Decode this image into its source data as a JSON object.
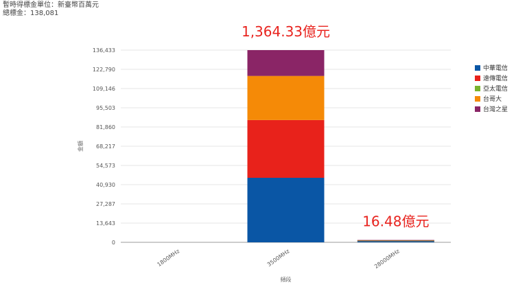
{
  "header": {
    "line1": "暫時得標金單位：新臺幣百萬元",
    "line2": "總標金：138,081"
  },
  "annotations": [
    {
      "text": "1,364.33億元",
      "category": "3500MHz"
    },
    {
      "text": "16.48億元",
      "category": "28000MHz"
    }
  ],
  "chart_data": {
    "type": "bar",
    "stacked": true,
    "categories": [
      "1800MHz",
      "3500MHz",
      "28000MHz"
    ],
    "series": [
      {
        "name": "中華電信",
        "color": "#0a56a5",
        "values": [
          0,
          45800,
          900
        ]
      },
      {
        "name": "遠傳電信",
        "color": "#e8221b",
        "values": [
          0,
          41000,
          300
        ]
      },
      {
        "name": "亞太電信",
        "color": "#7ab32e",
        "values": [
          0,
          0,
          50
        ]
      },
      {
        "name": "台哥大",
        "color": "#f58a07",
        "values": [
          0,
          31300,
          300
        ]
      },
      {
        "name": "台灣之星",
        "color": "#8a2566",
        "values": [
          0,
          18333,
          98
        ]
      }
    ],
    "xlabel": "頻段",
    "ylabel": "金額",
    "yticks": [
      "0",
      "13,643",
      "27,287",
      "40,930",
      "54,573",
      "68,217",
      "81,860",
      "95,503",
      "109,146",
      "122,790",
      "136,433"
    ],
    "ylim": [
      0,
      136433
    ],
    "grid": true,
    "legend_position": "right"
  }
}
